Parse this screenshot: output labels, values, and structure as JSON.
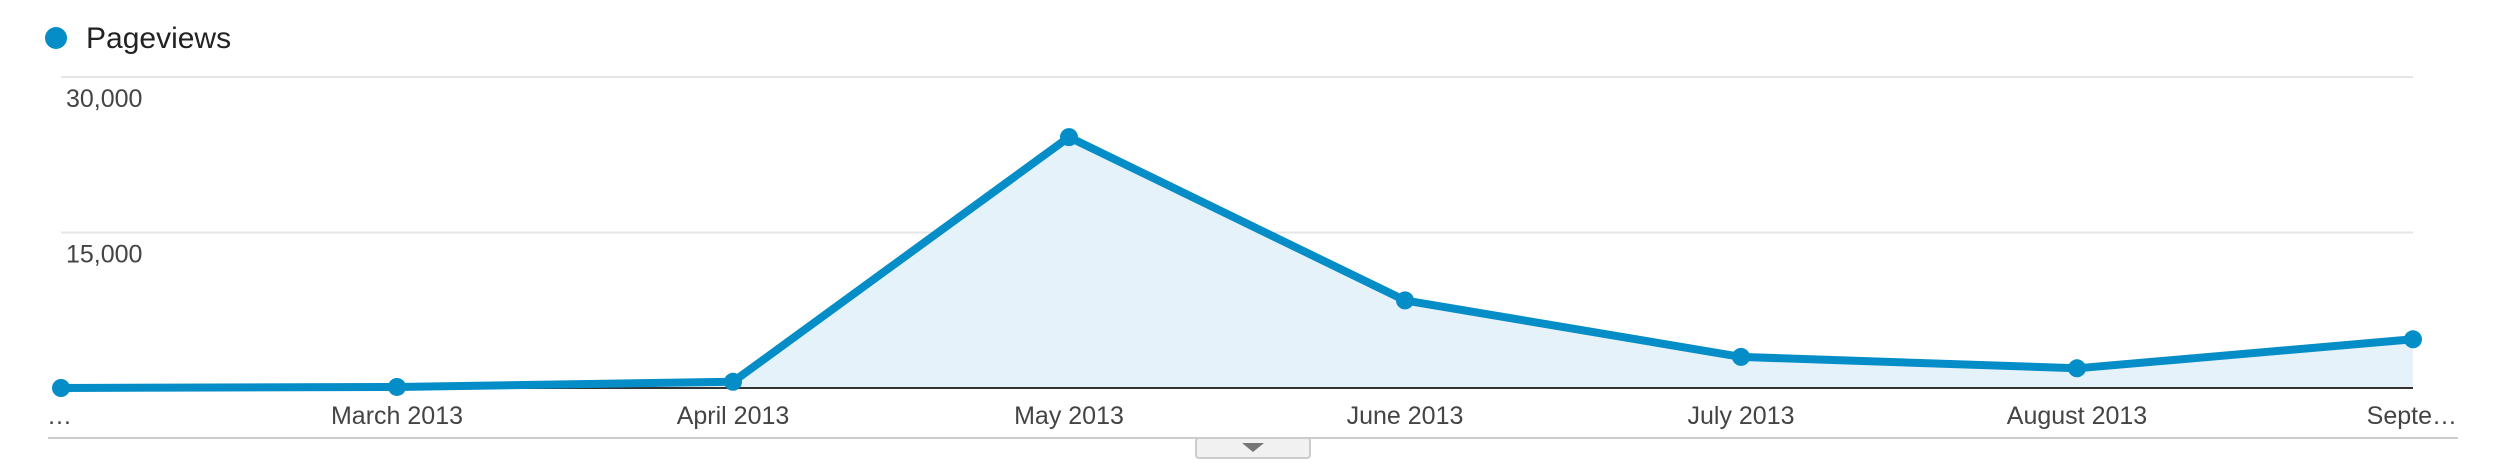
{
  "chart_data": {
    "type": "line",
    "legend": "top-left",
    "categories": [
      "…",
      "March 2013",
      "April 2013",
      "May 2013",
      "June 2013",
      "July 2013",
      "August 2013",
      "Septe…"
    ],
    "series": [
      {
        "name": "Pageviews",
        "color": "#058dc7",
        "values": [
          0,
          100,
          600,
          24200,
          8450,
          3000,
          1900,
          4700
        ]
      }
    ],
    "ylim": [
      0,
      30000
    ],
    "yticks": [
      {
        "value": 15000,
        "label": "15,000"
      },
      {
        "value": 30000,
        "label": "30,000"
      }
    ],
    "grid": true
  }
}
